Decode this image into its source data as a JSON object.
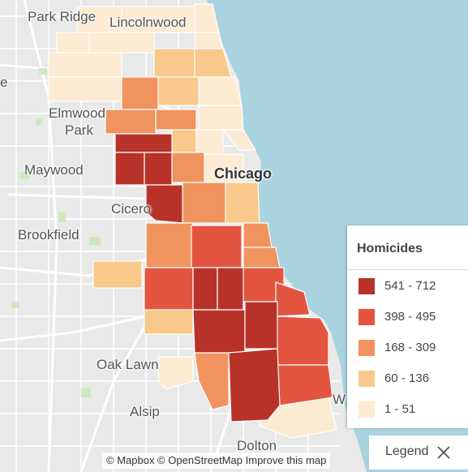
{
  "map": {
    "place_labels": [
      {
        "id": "park-ridge",
        "text": "Park Ridge"
      },
      {
        "id": "lincolnwood",
        "text": "Lincolnwood"
      },
      {
        "id": "elmwood",
        "text": "Elmwood"
      },
      {
        "id": "park",
        "text": "Park"
      },
      {
        "id": "maywood",
        "text": "Maywood"
      },
      {
        "id": "chicago",
        "text": "Chicago"
      },
      {
        "id": "cicero",
        "text": "Cicero"
      },
      {
        "id": "brookfield",
        "text": "Brookfield"
      },
      {
        "id": "oak-lawn",
        "text": "Oak Lawn"
      },
      {
        "id": "alsip",
        "text": "Alsip"
      },
      {
        "id": "dolton",
        "text": "Dolton"
      },
      {
        "id": "edge-e",
        "text": "e"
      },
      {
        "id": "edge-w",
        "text": "W"
      }
    ],
    "colors": {
      "water": "#a8d3df",
      "land": "#e9e9e9",
      "road": "#ffffff",
      "park": "#cfe8c1"
    }
  },
  "legend": {
    "title": "Homicides",
    "items": [
      {
        "range": "541 - 712",
        "color": "#b8322a"
      },
      {
        "range": "398 - 495",
        "color": "#e3553f"
      },
      {
        "range": "168 - 309",
        "color": "#f1935e"
      },
      {
        "range": "60 - 136",
        "color": "#f8c98a"
      },
      {
        "range": "1 - 51",
        "color": "#fdebd3"
      }
    ],
    "toggle_label": "Legend",
    "close_icon": "close-icon"
  },
  "attribution": "© Mapbox © OpenStreetMap Improve this map"
}
